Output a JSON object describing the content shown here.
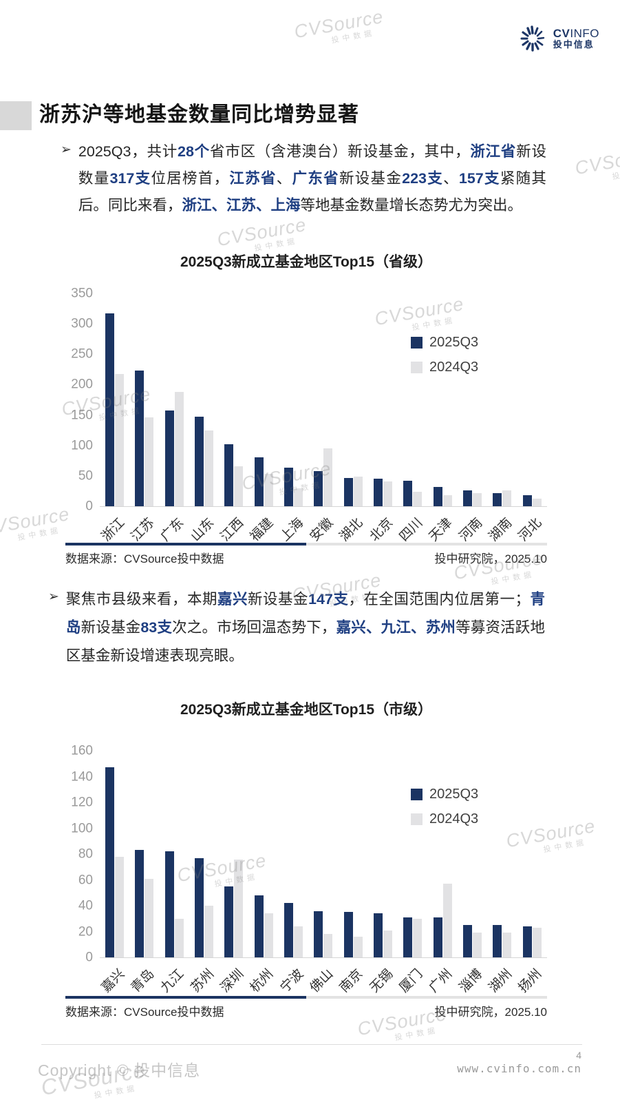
{
  "page": {
    "header": {
      "logo": {
        "cv": "CV",
        "info": "INFO",
        "cn": "投中信息"
      }
    },
    "watermark": {
      "text": "CVSource",
      "sub": "投中数据"
    },
    "title": "浙苏沪等地基金数量同比增势显著",
    "bullet_char": "➢",
    "para1": [
      {
        "t": "2025Q3，共计"
      },
      {
        "t": "28个",
        "b": true
      },
      {
        "t": "省市区（含港澳台）新设基金，其中，"
      },
      {
        "t": "浙江省",
        "b": true
      },
      {
        "t": "新设数量"
      },
      {
        "t": "317支",
        "b": true
      },
      {
        "t": "位居榜首，"
      },
      {
        "t": "江苏省",
        "b": true
      },
      {
        "t": "、"
      },
      {
        "t": "广东省",
        "b": true
      },
      {
        "t": "新设基金"
      },
      {
        "t": "223支",
        "b": true
      },
      {
        "t": "、"
      },
      {
        "t": "157支",
        "b": true
      },
      {
        "t": "紧随其后。同比来看，"
      },
      {
        "t": "浙江、江苏、上海",
        "b": true
      },
      {
        "t": "等地基金数量增长态势尤为突出。"
      }
    ],
    "para2": [
      {
        "t": "聚焦市县级来看，本期"
      },
      {
        "t": "嘉兴",
        "b": true
      },
      {
        "t": "新设基金"
      },
      {
        "t": "147支",
        "b": true
      },
      {
        "t": "，在全国范围内位居第一；"
      },
      {
        "t": "青岛",
        "b": true
      },
      {
        "t": "新设基金"
      },
      {
        "t": "83支",
        "b": true
      },
      {
        "t": "次之。市场回温态势下，"
      },
      {
        "t": "嘉兴、九江、苏州",
        "b": true
      },
      {
        "t": "等募资活跃地区基金新设增速表现亮眼。"
      }
    ],
    "footer": {
      "source": "数据来源：CVSource投中数据",
      "org_date": "投中研究院，2025.10"
    },
    "bottom": {
      "page_number": "4",
      "website": "www.cvinfo.com.cn",
      "copyright": "Copyright © 投中信息"
    },
    "colors": {
      "navy": "#1b3462",
      "gray_bar": "#e2e2e4",
      "highlight_text": "#1f3f82"
    }
  },
  "chart_data": [
    {
      "type": "bar",
      "title": "2025Q3新成立基金地区Top15（省级）",
      "categories": [
        "浙江",
        "江苏",
        "广东",
        "山东",
        "江西",
        "福建",
        "上海",
        "安徽",
        "湖北",
        "北京",
        "四川",
        "天津",
        "河南",
        "湖南",
        "河北"
      ],
      "series": [
        {
          "name": "2025Q3",
          "color": "#1b3462",
          "values": [
            317,
            223,
            157,
            147,
            102,
            81,
            64,
            58,
            47,
            45,
            42,
            32,
            26,
            22,
            18
          ]
        },
        {
          "name": "2024Q3",
          "color": "#e2e2e4",
          "values": [
            217,
            146,
            188,
            125,
            66,
            53,
            29,
            95,
            49,
            41,
            24,
            18,
            22,
            26,
            13
          ]
        }
      ],
      "xlabel": "",
      "ylabel": "",
      "ylim": [
        0,
        350
      ],
      "ytick_step": 50,
      "grid": false,
      "legend_position": "inside-right"
    },
    {
      "type": "bar",
      "title": "2025Q3新成立基金地区Top15（市级）",
      "categories": [
        "嘉兴",
        "青岛",
        "九江",
        "苏州",
        "深圳",
        "杭州",
        "宁波",
        "佛山",
        "南京",
        "无锡",
        "厦门",
        "广州",
        "淄博",
        "湖州",
        "扬州"
      ],
      "series": [
        {
          "name": "2025Q3",
          "color": "#1b3462",
          "values": [
            147,
            83,
            82,
            77,
            55,
            48,
            42,
            36,
            35,
            34,
            31,
            31,
            25,
            25,
            24
          ]
        },
        {
          "name": "2024Q3",
          "color": "#e2e2e4",
          "values": [
            78,
            61,
            30,
            40,
            76,
            34,
            24,
            18,
            16,
            21,
            30,
            57,
            19,
            19,
            23
          ]
        }
      ],
      "xlabel": "",
      "ylabel": "",
      "ylim": [
        0,
        160
      ],
      "ytick_step": 20,
      "grid": false,
      "legend_position": "inside-right"
    }
  ]
}
